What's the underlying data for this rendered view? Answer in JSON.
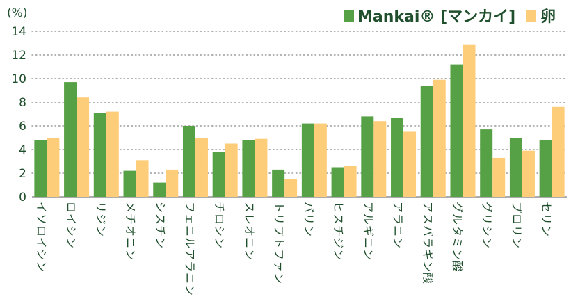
{
  "chart_data": {
    "type": "bar",
    "unit_label": "(%)",
    "ylim": [
      0,
      14
    ],
    "yticks": [
      0,
      2,
      4,
      6,
      8,
      10,
      12,
      14
    ],
    "grid": true,
    "legend_position": "top-right",
    "categories": [
      "イソロイシン",
      "ロイシン",
      "リジン",
      "メチオニン",
      "シスチン",
      "フェニルアラニン",
      "チロシン",
      "スレオニン",
      "トリプトファン",
      "バリン",
      "ヒスチジン",
      "アルギニン",
      "アラニン",
      "アスパラギン酸",
      "グルタミン酸",
      "グリシン",
      "プロリン",
      "セリン"
    ],
    "series": [
      {
        "name": "Mankai® [マンカイ]",
        "color": "#56a145",
        "values": [
          4.8,
          9.7,
          7.1,
          2.2,
          1.2,
          6.0,
          3.8,
          4.8,
          2.3,
          6.2,
          2.5,
          6.8,
          6.7,
          9.4,
          11.2,
          5.7,
          5.0,
          4.8
        ]
      },
      {
        "name": "卵",
        "color": "#fdcd7a",
        "values": [
          5.0,
          8.4,
          7.2,
          3.1,
          2.3,
          5.0,
          4.5,
          4.9,
          1.5,
          6.2,
          2.6,
          6.4,
          5.5,
          9.9,
          12.9,
          3.3,
          3.9,
          7.6
        ]
      }
    ]
  },
  "colors": {
    "text": "#1f4f2c",
    "grid": "#9a9a9a"
  }
}
